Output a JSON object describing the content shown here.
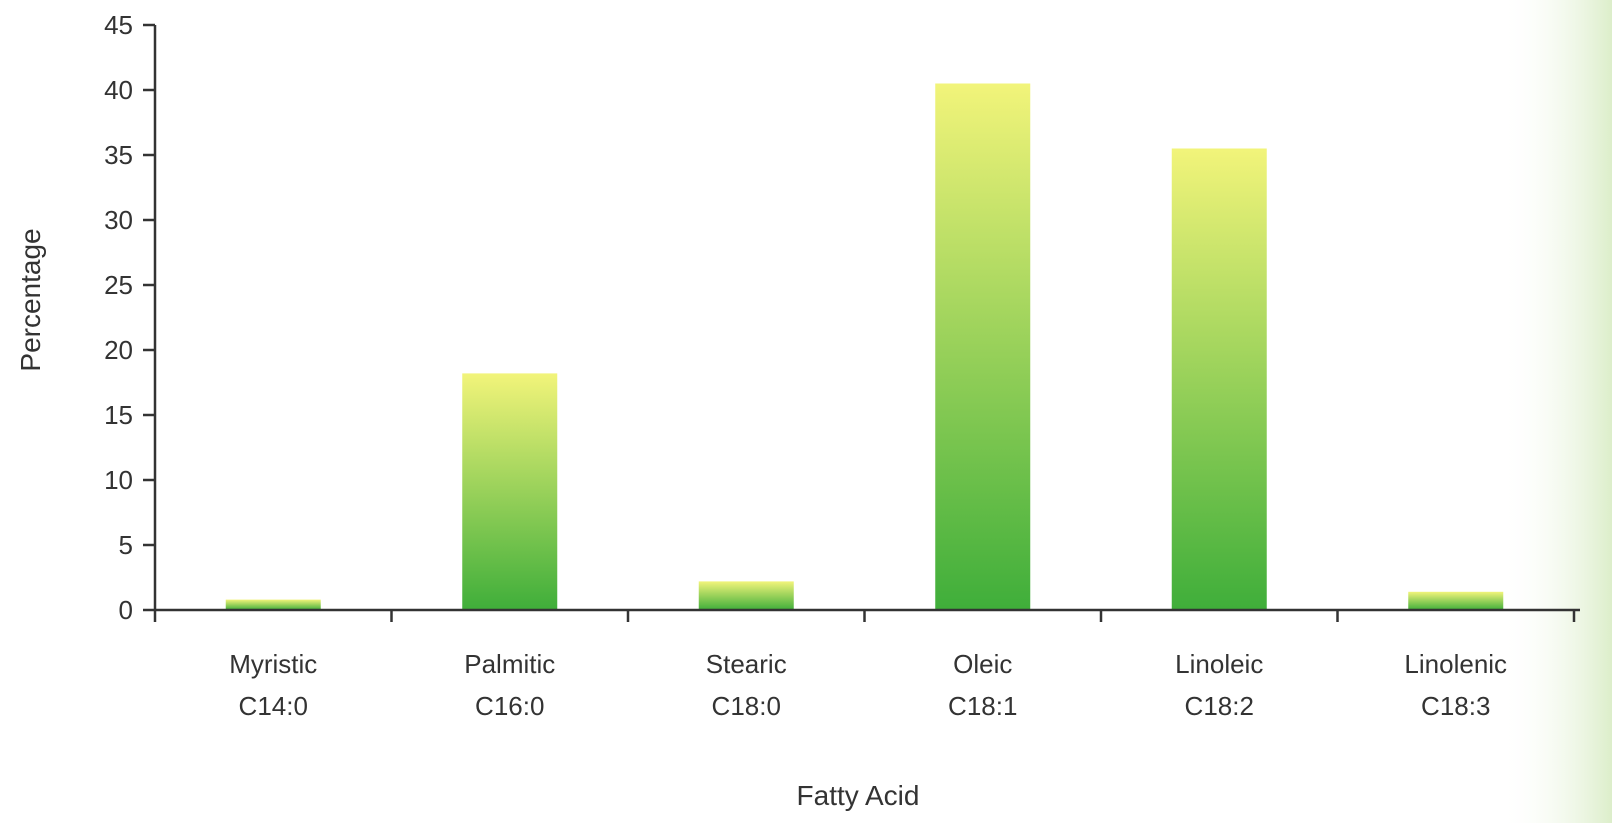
{
  "chart_data": {
    "type": "bar",
    "title": "",
    "xlabel": "Fatty Acid",
    "ylabel": "Percentage",
    "categories": [
      [
        "Myristic",
        "C14:0"
      ],
      [
        "Palmitic",
        "C16:0"
      ],
      [
        "Stearic",
        "C18:0"
      ],
      [
        "Oleic",
        "C18:1"
      ],
      [
        "Linoleic",
        "C18:2"
      ],
      [
        "Linolenic",
        "C18:3"
      ]
    ],
    "values": [
      0.8,
      18.2,
      2.2,
      40.5,
      35.5,
      1.4
    ],
    "ylim": [
      0,
      45
    ],
    "yticks": [
      0,
      5,
      10,
      15,
      20,
      25,
      30,
      35,
      40,
      45
    ],
    "grid": false,
    "legend": "none",
    "colors": {
      "bar_top": "#f2f47a",
      "bar_bottom": "#3fae3a",
      "axis": "#333333"
    }
  }
}
